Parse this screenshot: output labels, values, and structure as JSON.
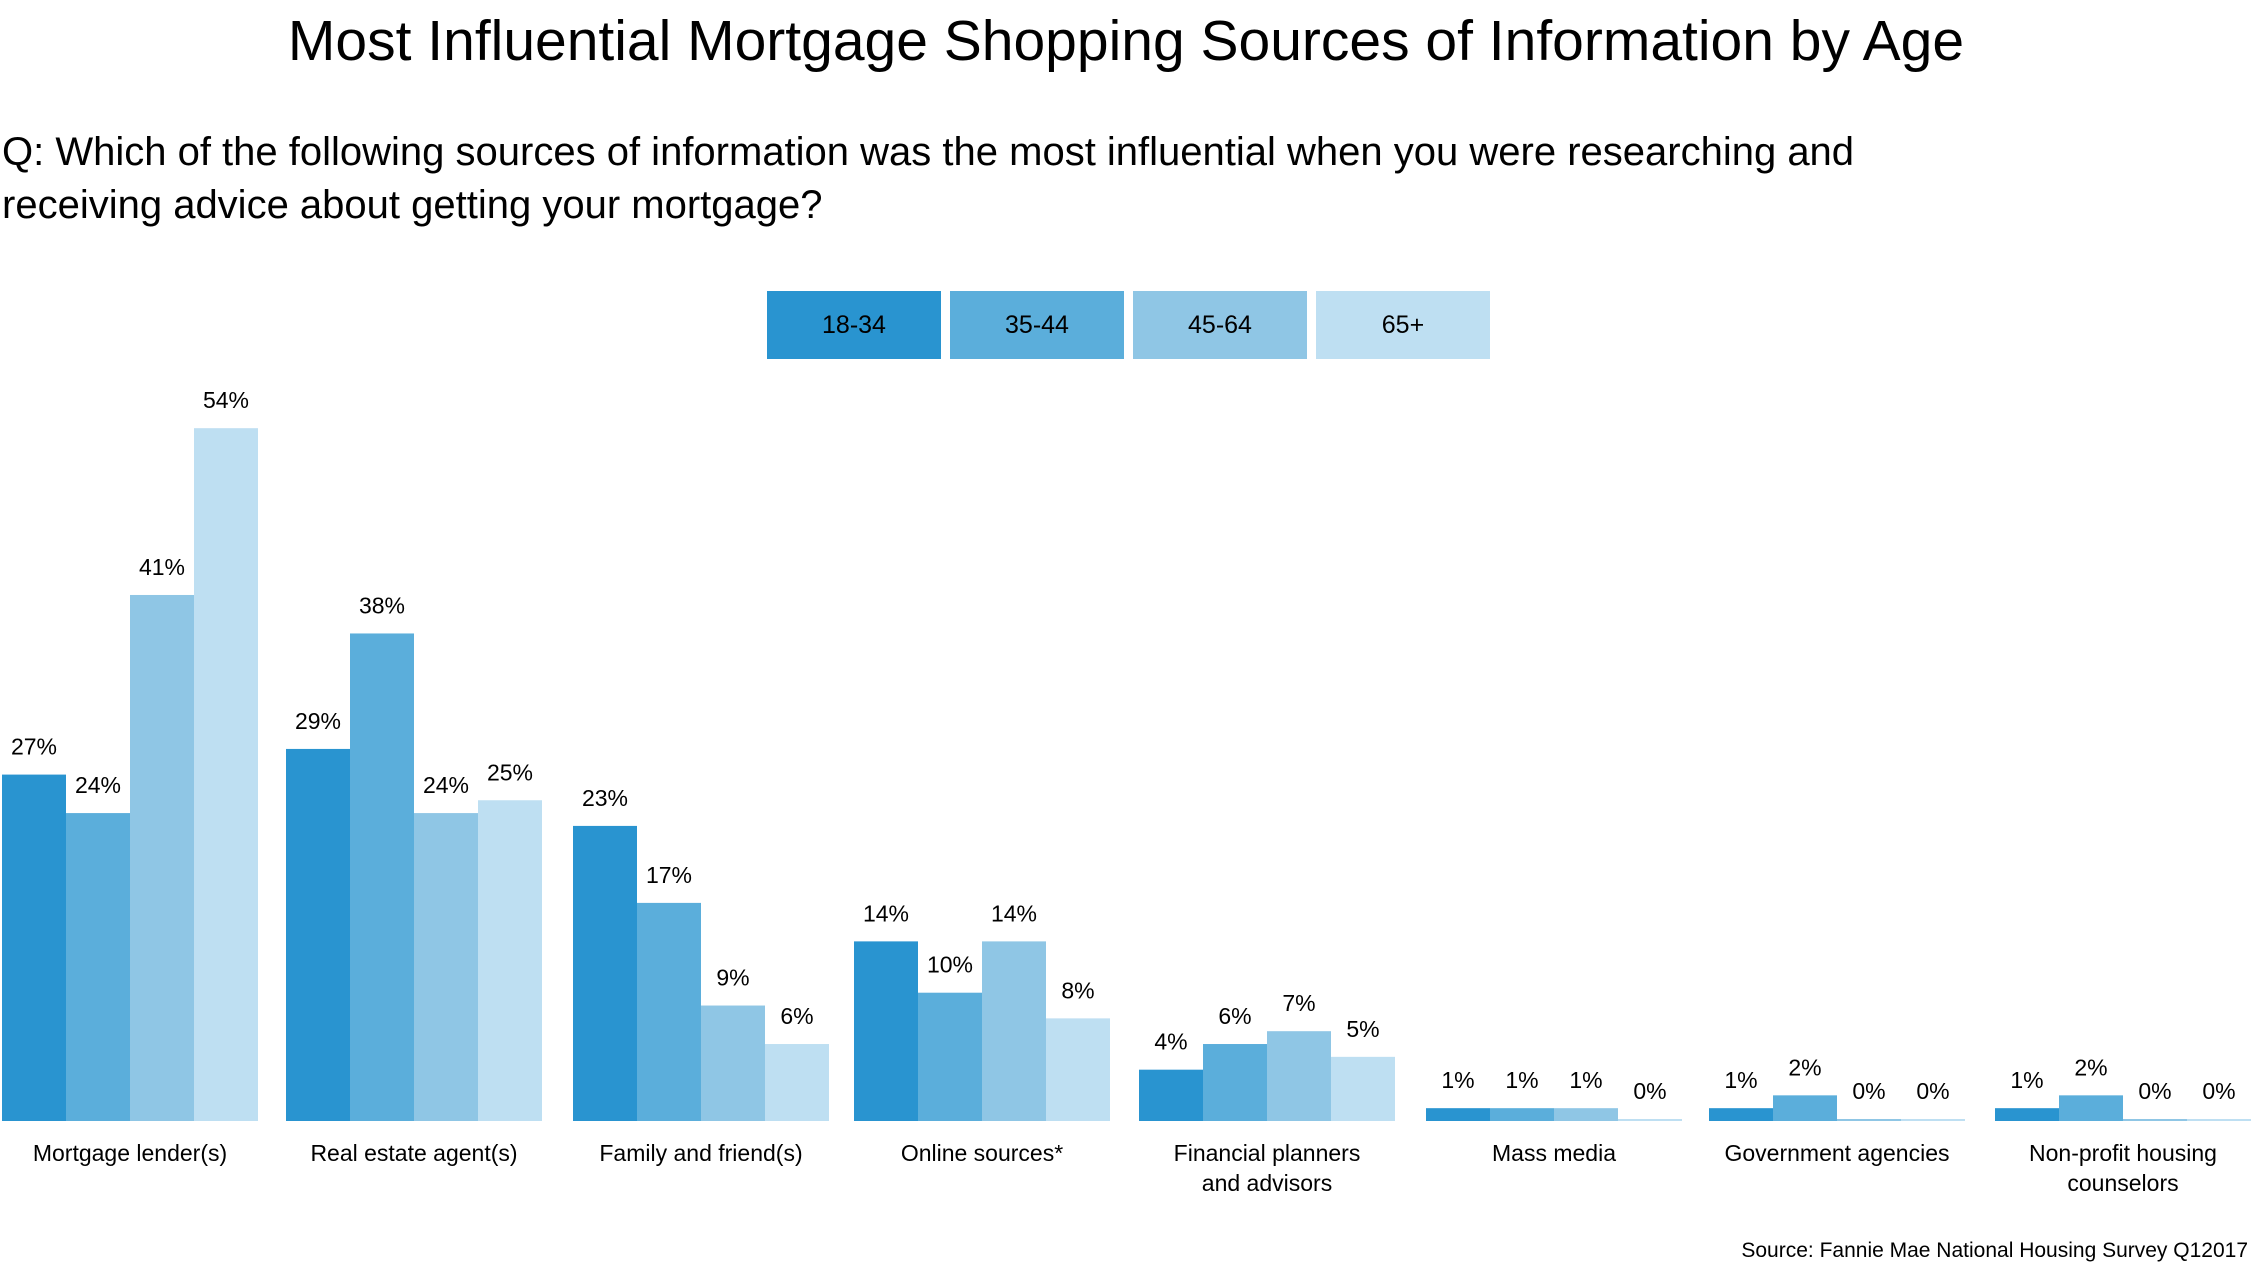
{
  "title": "Most Influential Mortgage Shopping Sources of Information by Age",
  "question": {
    "line1": "Q: Which of the following sources of information was the most influential when you were researching and",
    "line2": "receiving advice about getting your mortgage?"
  },
  "source": "Source:  Fannie Mae National Housing Survey Q12017",
  "colors": {
    "18-34": "#2994D0",
    "35-44": "#5BAEDB",
    "45-64": "#8FC6E5",
    "65+": "#BEDFF2"
  },
  "chart_data": {
    "type": "bar",
    "title": "Most Influential Mortgage Shopping Sources of Information by Age",
    "categories": [
      [
        "Mortgage lender(s)"
      ],
      [
        "Real estate agent(s)"
      ],
      [
        "Family and friend(s)"
      ],
      [
        "Online sources*"
      ],
      [
        "Financial planners",
        "and advisors"
      ],
      [
        "Mass media"
      ],
      [
        "Government agencies"
      ],
      [
        "Non-profit housing",
        "counselors"
      ]
    ],
    "series": [
      {
        "name": "18-34",
        "values": [
          27,
          29,
          23,
          14,
          4,
          1,
          1,
          1
        ],
        "labels": [
          "27%",
          "29%",
          "23%",
          "14%",
          "4%",
          "1%",
          "1%",
          "1%"
        ]
      },
      {
        "name": "35-44",
        "values": [
          24,
          38,
          17,
          10,
          6,
          1,
          2,
          2
        ],
        "labels": [
          "24%",
          "38%",
          "17%",
          "10%",
          "6%",
          "1%",
          "2%",
          "2%"
        ]
      },
      {
        "name": "45-64",
        "values": [
          41,
          24,
          9,
          14,
          7,
          1,
          0,
          0
        ],
        "labels": [
          "41%",
          "24%",
          "9%",
          "14%",
          "7%",
          "1%",
          "0%",
          "0%"
        ]
      },
      {
        "name": "65+",
        "values": [
          54,
          25,
          6,
          8,
          5,
          0,
          0,
          0
        ],
        "labels": [
          "54%",
          "25%",
          "6%",
          "8%",
          "5%",
          "0%",
          "0%",
          "0%"
        ]
      }
    ],
    "ylim": [
      0,
      54
    ],
    "legend": "top-center",
    "grid": false
  }
}
